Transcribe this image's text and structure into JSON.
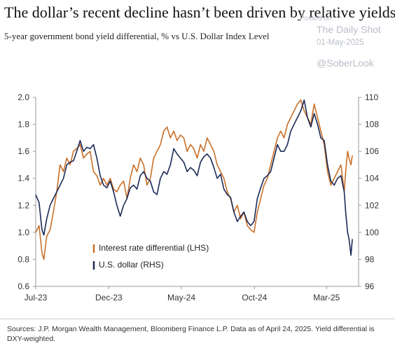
{
  "header": {
    "title": "The dollar’s recent decline hasn’t been driven by relative yields",
    "subtitle": "5-year government bond yield differential, % vs U.S. Dollar Index Level"
  },
  "watermark": {
    "posted_on": "Posted on",
    "site": "The Daily Shot",
    "date": "01-May-2025",
    "handle": "@SoberLook"
  },
  "footer": {
    "source": "Sources: J.P. Morgan Wealth Management, Bloomberg Finance L.P. Data as of April 24, 2025. Yield differential is DXY-weighted."
  },
  "chart_data": {
    "type": "line",
    "x_ticks": [
      "Jul-23",
      "Dec-23",
      "May-24",
      "Oct-24",
      "Mar-25"
    ],
    "x_range": [
      "2023-07-01",
      "2025-05-07"
    ],
    "y_left": {
      "ticks": [
        "0.6",
        "0.8",
        "1.0",
        "1.2",
        "1.4",
        "1.6",
        "1.8",
        "2.0"
      ],
      "range": [
        0.6,
        2.0
      ]
    },
    "y_right": {
      "ticks": [
        "96",
        "98",
        "100",
        "102",
        "104",
        "106",
        "108",
        "110"
      ],
      "range": [
        96,
        110
      ]
    },
    "grid": false,
    "legend_position": "bottom-left",
    "colors": {
      "differential": "#c8702a",
      "dollar": "#1b2a57",
      "axis": "#999999"
    },
    "series": [
      {
        "name": "Interest rate differential (LHS)",
        "key": "differential",
        "axis": "left",
        "points": [
          [
            "2023-07-01",
            1.0
          ],
          [
            "2023-07-08",
            1.05
          ],
          [
            "2023-07-14",
            0.85
          ],
          [
            "2023-07-18",
            0.8
          ],
          [
            "2023-07-24",
            0.97
          ],
          [
            "2023-07-31",
            1.02
          ],
          [
            "2023-08-07",
            1.15
          ],
          [
            "2023-08-14",
            1.3
          ],
          [
            "2023-08-21",
            1.5
          ],
          [
            "2023-08-28",
            1.45
          ],
          [
            "2023-09-04",
            1.55
          ],
          [
            "2023-09-11",
            1.5
          ],
          [
            "2023-09-18",
            1.6
          ],
          [
            "2023-09-25",
            1.62
          ],
          [
            "2023-10-02",
            1.65
          ],
          [
            "2023-10-09",
            1.55
          ],
          [
            "2023-10-16",
            1.58
          ],
          [
            "2023-10-23",
            1.6
          ],
          [
            "2023-10-30",
            1.45
          ],
          [
            "2023-11-06",
            1.42
          ],
          [
            "2023-11-13",
            1.35
          ],
          [
            "2023-11-20",
            1.4
          ],
          [
            "2023-11-27",
            1.35
          ],
          [
            "2023-12-04",
            1.4
          ],
          [
            "2023-12-11",
            1.32
          ],
          [
            "2023-12-18",
            1.3
          ],
          [
            "2023-12-25",
            1.35
          ],
          [
            "2024-01-01",
            1.38
          ],
          [
            "2024-01-08",
            1.25
          ],
          [
            "2024-01-15",
            1.4
          ],
          [
            "2024-01-22",
            1.5
          ],
          [
            "2024-01-29",
            1.45
          ],
          [
            "2024-02-05",
            1.55
          ],
          [
            "2024-02-12",
            1.5
          ],
          [
            "2024-02-19",
            1.35
          ],
          [
            "2024-02-26",
            1.4
          ],
          [
            "2024-03-04",
            1.55
          ],
          [
            "2024-03-11",
            1.6
          ],
          [
            "2024-03-18",
            1.65
          ],
          [
            "2024-03-25",
            1.75
          ],
          [
            "2024-04-01",
            1.78
          ],
          [
            "2024-04-08",
            1.7
          ],
          [
            "2024-04-15",
            1.75
          ],
          [
            "2024-04-22",
            1.68
          ],
          [
            "2024-04-29",
            1.72
          ],
          [
            "2024-05-06",
            1.7
          ],
          [
            "2024-05-13",
            1.6
          ],
          [
            "2024-05-20",
            1.65
          ],
          [
            "2024-05-27",
            1.62
          ],
          [
            "2024-06-03",
            1.55
          ],
          [
            "2024-06-10",
            1.65
          ],
          [
            "2024-06-17",
            1.6
          ],
          [
            "2024-06-24",
            1.7
          ],
          [
            "2024-07-01",
            1.65
          ],
          [
            "2024-07-08",
            1.6
          ],
          [
            "2024-07-15",
            1.5
          ],
          [
            "2024-07-22",
            1.45
          ],
          [
            "2024-07-29",
            1.4
          ],
          [
            "2024-08-05",
            1.3
          ],
          [
            "2024-08-12",
            1.25
          ],
          [
            "2024-08-19",
            1.15
          ],
          [
            "2024-08-26",
            1.2
          ],
          [
            "2024-09-02",
            1.1
          ],
          [
            "2024-09-09",
            1.15
          ],
          [
            "2024-09-16",
            1.05
          ],
          [
            "2024-09-23",
            1.02
          ],
          [
            "2024-09-30",
            1.0
          ],
          [
            "2024-10-07",
            1.15
          ],
          [
            "2024-10-14",
            1.25
          ],
          [
            "2024-10-21",
            1.35
          ],
          [
            "2024-10-28",
            1.4
          ],
          [
            "2024-11-04",
            1.5
          ],
          [
            "2024-11-11",
            1.6
          ],
          [
            "2024-11-18",
            1.7
          ],
          [
            "2024-11-25",
            1.75
          ],
          [
            "2024-12-02",
            1.7
          ],
          [
            "2024-12-09",
            1.8
          ],
          [
            "2024-12-16",
            1.85
          ],
          [
            "2024-12-23",
            1.9
          ],
          [
            "2024-12-30",
            1.95
          ],
          [
            "2025-01-06",
            1.98
          ],
          [
            "2025-01-13",
            1.9
          ],
          [
            "2025-01-20",
            1.85
          ],
          [
            "2025-01-27",
            1.8
          ],
          [
            "2025-02-03",
            1.95
          ],
          [
            "2025-02-10",
            1.85
          ],
          [
            "2025-02-17",
            1.75
          ],
          [
            "2025-02-24",
            1.65
          ],
          [
            "2025-03-03",
            1.45
          ],
          [
            "2025-03-10",
            1.35
          ],
          [
            "2025-03-17",
            1.4
          ],
          [
            "2025-03-24",
            1.45
          ],
          [
            "2025-03-31",
            1.5
          ],
          [
            "2025-04-07",
            1.3
          ],
          [
            "2025-04-10",
            1.45
          ],
          [
            "2025-04-14",
            1.6
          ],
          [
            "2025-04-17",
            1.55
          ],
          [
            "2025-04-21",
            1.5
          ],
          [
            "2025-04-24",
            1.57
          ]
        ]
      },
      {
        "name": "U.S. dollar (RHS)",
        "key": "dollar",
        "axis": "right",
        "points": [
          [
            "2023-07-01",
            102.8
          ],
          [
            "2023-07-08",
            102.2
          ],
          [
            "2023-07-14",
            100.2
          ],
          [
            "2023-07-18",
            99.8
          ],
          [
            "2023-07-24",
            101.0
          ],
          [
            "2023-07-31",
            102.0
          ],
          [
            "2023-08-07",
            102.5
          ],
          [
            "2023-08-14",
            103.0
          ],
          [
            "2023-08-21",
            103.5
          ],
          [
            "2023-08-28",
            104.0
          ],
          [
            "2023-09-04",
            105.0
          ],
          [
            "2023-09-11",
            105.2
          ],
          [
            "2023-09-18",
            105.3
          ],
          [
            "2023-09-25",
            106.0
          ],
          [
            "2023-10-02",
            106.8
          ],
          [
            "2023-10-09",
            106.0
          ],
          [
            "2023-10-16",
            106.3
          ],
          [
            "2023-10-23",
            106.2
          ],
          [
            "2023-10-30",
            106.5
          ],
          [
            "2023-11-06",
            105.5
          ],
          [
            "2023-11-13",
            104.2
          ],
          [
            "2023-11-20",
            103.5
          ],
          [
            "2023-11-27",
            103.3
          ],
          [
            "2023-12-04",
            103.8
          ],
          [
            "2023-12-11",
            103.0
          ],
          [
            "2023-12-18",
            102.0
          ],
          [
            "2023-12-25",
            101.2
          ],
          [
            "2024-01-01",
            102.0
          ],
          [
            "2024-01-08",
            102.5
          ],
          [
            "2024-01-15",
            103.3
          ],
          [
            "2024-01-22",
            103.5
          ],
          [
            "2024-01-29",
            103.2
          ],
          [
            "2024-02-05",
            104.2
          ],
          [
            "2024-02-12",
            104.5
          ],
          [
            "2024-02-19",
            104.0
          ],
          [
            "2024-02-26",
            103.8
          ],
          [
            "2024-03-04",
            103.0
          ],
          [
            "2024-03-11",
            102.8
          ],
          [
            "2024-03-18",
            104.0
          ],
          [
            "2024-03-25",
            104.5
          ],
          [
            "2024-04-01",
            104.3
          ],
          [
            "2024-04-08",
            105.0
          ],
          [
            "2024-04-15",
            106.2
          ],
          [
            "2024-04-22",
            105.8
          ],
          [
            "2024-04-29",
            105.5
          ],
          [
            "2024-05-06",
            105.2
          ],
          [
            "2024-05-13",
            104.5
          ],
          [
            "2024-05-20",
            104.8
          ],
          [
            "2024-05-27",
            104.6
          ],
          [
            "2024-06-03",
            104.2
          ],
          [
            "2024-06-10",
            105.2
          ],
          [
            "2024-06-17",
            105.6
          ],
          [
            "2024-06-24",
            105.8
          ],
          [
            "2024-07-01",
            105.5
          ],
          [
            "2024-07-08",
            104.8
          ],
          [
            "2024-07-15",
            104.0
          ],
          [
            "2024-07-22",
            104.3
          ],
          [
            "2024-07-29",
            103.2
          ],
          [
            "2024-08-05",
            102.8
          ],
          [
            "2024-08-12",
            102.6
          ],
          [
            "2024-08-19",
            101.5
          ],
          [
            "2024-08-26",
            100.8
          ],
          [
            "2024-09-02",
            101.2
          ],
          [
            "2024-09-09",
            101.5
          ],
          [
            "2024-09-16",
            100.8
          ],
          [
            "2024-09-23",
            100.5
          ],
          [
            "2024-09-30",
            100.8
          ],
          [
            "2024-10-07",
            102.5
          ],
          [
            "2024-10-14",
            103.3
          ],
          [
            "2024-10-21",
            104.0
          ],
          [
            "2024-10-28",
            104.2
          ],
          [
            "2024-11-04",
            104.5
          ],
          [
            "2024-11-11",
            105.5
          ],
          [
            "2024-11-18",
            106.5
          ],
          [
            "2024-11-25",
            106.0
          ],
          [
            "2024-12-02",
            106.0
          ],
          [
            "2024-12-09",
            106.5
          ],
          [
            "2024-12-16",
            107.5
          ],
          [
            "2024-12-23",
            108.0
          ],
          [
            "2024-12-30",
            108.5
          ],
          [
            "2025-01-06",
            109.0
          ],
          [
            "2025-01-13",
            109.8
          ],
          [
            "2025-01-20",
            108.5
          ],
          [
            "2025-01-27",
            107.8
          ],
          [
            "2025-02-03",
            108.8
          ],
          [
            "2025-02-10",
            108.0
          ],
          [
            "2025-02-17",
            107.0
          ],
          [
            "2025-02-24",
            106.8
          ],
          [
            "2025-03-03",
            105.0
          ],
          [
            "2025-03-10",
            103.8
          ],
          [
            "2025-03-17",
            103.5
          ],
          [
            "2025-03-24",
            104.0
          ],
          [
            "2025-03-31",
            104.2
          ],
          [
            "2025-04-07",
            103.0
          ],
          [
            "2025-04-10",
            101.5
          ],
          [
            "2025-04-14",
            100.0
          ],
          [
            "2025-04-17",
            99.5
          ],
          [
            "2025-04-21",
            98.3
          ],
          [
            "2025-04-24",
            99.5
          ]
        ]
      }
    ]
  }
}
